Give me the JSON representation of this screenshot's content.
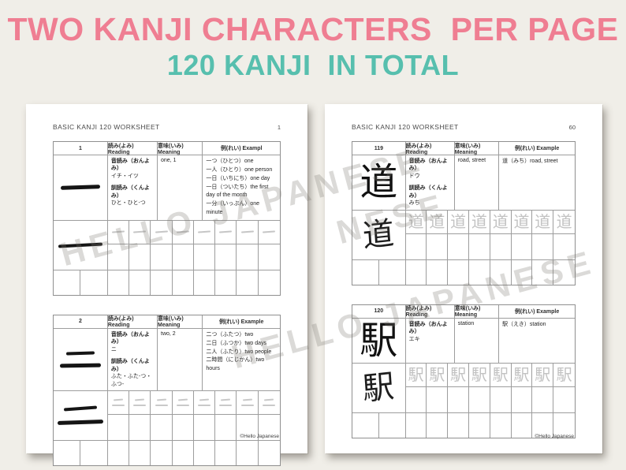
{
  "title": {
    "line1": "TWO KANJI CHARACTERS  PER PAGE",
    "line2": "120 KANJI  IN TOTAL"
  },
  "colors": {
    "title_pink": "#ef7e92",
    "title_teal": "#57bfae",
    "background": "#f0eee8",
    "page": "#ffffff",
    "trace_gray": "#c6c6c6"
  },
  "watermark": {
    "text": "HELLO JAPANESE",
    "fragment": "NESE"
  },
  "pages": [
    {
      "header": "BASIC KANJI 120 WORKSHEET",
      "page_number": "1",
      "footer": "©Hello Japanese",
      "tables": [
        {
          "number": "1",
          "kanji": "一",
          "col_reading": "読み(よみ) Reading",
          "col_meaning": "意味(いみ) Meaning",
          "col_example": "例(れい) Exampl",
          "onyomi_label": "音読み（おんよみ）",
          "onyomi": "イチ・イツ",
          "kunyomi_label": "訓読み（くんよみ）",
          "kunyomi": "ひと・ひと-つ",
          "meaning": "one, 1",
          "examples": [
            "一つ（ひとつ）one",
            "一人（ひとり）one person",
            "一日（いちにち）one day",
            "一日（ついたち）the first day of the month",
            "一分（いっぷん）one minute"
          ]
        },
        {
          "number": "2",
          "kanji": "二",
          "col_reading": "読み(よみ) Reading",
          "col_meaning": "意味(いみ) Meaning",
          "col_example": "例(れい) Example",
          "onyomi_label": "音読み（おんよみ）",
          "onyomi": "ニ",
          "kunyomi_label": "訓読み（くんよみ）",
          "kunyomi": "ふた・ふた-つ・ふつ-",
          "meaning": "two, 2",
          "examples": [
            "二つ（ふたつ）two",
            "二日（ふつか）two days",
            "二人（ふたり）two people",
            "二時間（にじかん）two hours"
          ]
        }
      ]
    },
    {
      "header": "BASIC KANJI 120 WORKSHEET",
      "page_number": "60",
      "footer": "©Hello Japanese",
      "tables": [
        {
          "number": "119",
          "kanji": "道",
          "col_reading": "読み(よみ) Reading",
          "col_meaning": "意味(いみ) Meaning",
          "col_example": "例(れい) Example",
          "onyomi_label": "音読み（おんよみ）",
          "onyomi": "ドウ",
          "kunyomi_label": "訓読み（くんよみ）",
          "kunyomi": "みち",
          "meaning": "road, street",
          "examples": [
            "道（みち）road, street"
          ]
        },
        {
          "number": "120",
          "kanji": "駅",
          "col_reading": "読み(よみ) Reading",
          "col_meaning": "意味(いみ) Meaning",
          "col_example": "例(れい) Example",
          "onyomi_label": "音読み（おんよみ）",
          "onyomi": "エキ",
          "kunyomi_label": "",
          "kunyomi": "",
          "meaning": "station",
          "examples": [
            "駅（えき）station"
          ]
        }
      ]
    }
  ]
}
